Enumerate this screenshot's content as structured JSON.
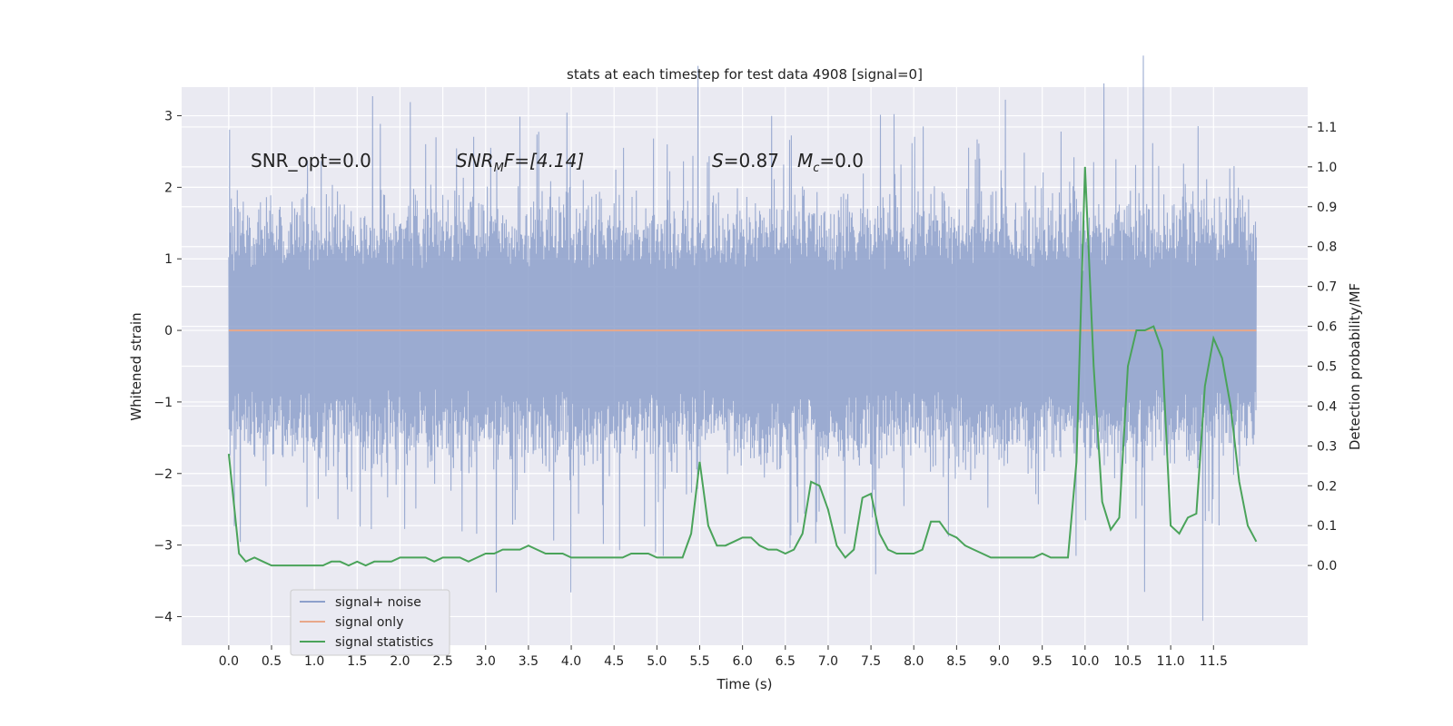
{
  "chart_data": {
    "type": "line",
    "title": "stats at each timestep for test data 4908 [signal=0]",
    "xlabel": "Time (s)",
    "ylabel": "Whitened strain",
    "ylabel_right": "Detection probability/MF",
    "xlim": [
      -0.55,
      12.6
    ],
    "ylim": [
      -4.4,
      3.4
    ],
    "ylim_right": [
      -0.2,
      1.2
    ],
    "x_ticks": [
      "0.0",
      "0.5",
      "1.0",
      "1.5",
      "2.0",
      "2.5",
      "3.0",
      "3.5",
      "4.0",
      "4.5",
      "5.0",
      "5.5",
      "6.0",
      "6.5",
      "7.0",
      "7.5",
      "8.0",
      "8.5",
      "9.0",
      "9.5",
      "10.0",
      "10.5",
      "11.0",
      "11.5"
    ],
    "y_ticks": [
      "3",
      "2",
      "1",
      "0",
      "−1",
      "−2",
      "−3",
      "−4"
    ],
    "y_ticks_right": [
      "1.1",
      "1.0",
      "0.9",
      "0.8",
      "0.7",
      "0.6",
      "0.5",
      "0.4",
      "0.3",
      "0.2",
      "0.1",
      "0.0"
    ],
    "grid": true,
    "legend_position": "lower-left",
    "annotations": {
      "snr_opt": "SNR_opt=0.0",
      "snr_mf_base": "SNR",
      "snr_mf_sub": "M",
      "snr_mf_rest": "F=[4.14]",
      "s_label": "S",
      "s_value": "=0.87",
      "mc_base": "M",
      "mc_sub": "c",
      "mc_value": "=0.0"
    },
    "series": [
      {
        "name": "signal+ noise",
        "color": "#8da0cb",
        "axis": "left",
        "x_range": [
          0.0,
          12.0
        ],
        "typical_band": [
          -1.6,
          1.6
        ],
        "extremes": [
          -4.1,
          3.1
        ],
        "description_values": "dense noise"
      },
      {
        "name": "signal only",
        "color": "#e8a88a",
        "axis": "left",
        "x": [
          0.0,
          12.0
        ],
        "values": [
          0.0,
          0.0
        ]
      },
      {
        "name": "signal statistics",
        "color": "#4aa35a",
        "axis": "right",
        "x": [
          0.0,
          0.12,
          0.2,
          0.3,
          0.4,
          0.5,
          0.6,
          0.7,
          0.8,
          0.9,
          1.0,
          1.1,
          1.2,
          1.3,
          1.4,
          1.5,
          1.6,
          1.7,
          1.8,
          1.9,
          2.0,
          2.1,
          2.2,
          2.3,
          2.4,
          2.5,
          2.6,
          2.7,
          2.8,
          2.9,
          3.0,
          3.1,
          3.2,
          3.3,
          3.4,
          3.5,
          3.6,
          3.7,
          3.8,
          3.9,
          4.0,
          4.1,
          4.2,
          4.3,
          4.4,
          4.5,
          4.6,
          4.7,
          4.8,
          4.9,
          5.0,
          5.1,
          5.2,
          5.3,
          5.4,
          5.5,
          5.6,
          5.7,
          5.8,
          5.9,
          6.0,
          6.1,
          6.2,
          6.3,
          6.4,
          6.5,
          6.6,
          6.7,
          6.8,
          6.9,
          7.0,
          7.1,
          7.2,
          7.3,
          7.4,
          7.5,
          7.6,
          7.7,
          7.8,
          7.9,
          8.0,
          8.1,
          8.2,
          8.3,
          8.4,
          8.5,
          8.6,
          8.7,
          8.8,
          8.9,
          9.0,
          9.1,
          9.2,
          9.3,
          9.4,
          9.5,
          9.6,
          9.7,
          9.8,
          9.9,
          10.0,
          10.1,
          10.2,
          10.3,
          10.4,
          10.5,
          10.6,
          10.7,
          10.8,
          10.9,
          11.0,
          11.1,
          11.2,
          11.3,
          11.4,
          11.5,
          11.6,
          11.7,
          11.8,
          11.9,
          12.0
        ],
        "values": [
          0.28,
          0.03,
          0.01,
          0.02,
          0.01,
          0.0,
          0.0,
          0.0,
          0.0,
          0.0,
          0.0,
          0.0,
          0.01,
          0.01,
          0.0,
          0.01,
          0.0,
          0.01,
          0.01,
          0.01,
          0.02,
          0.02,
          0.02,
          0.02,
          0.01,
          0.02,
          0.02,
          0.02,
          0.01,
          0.02,
          0.03,
          0.03,
          0.04,
          0.04,
          0.04,
          0.05,
          0.04,
          0.03,
          0.03,
          0.03,
          0.02,
          0.02,
          0.02,
          0.02,
          0.02,
          0.02,
          0.02,
          0.03,
          0.03,
          0.03,
          0.02,
          0.02,
          0.02,
          0.02,
          0.08,
          0.26,
          0.1,
          0.05,
          0.05,
          0.06,
          0.07,
          0.07,
          0.05,
          0.04,
          0.04,
          0.03,
          0.04,
          0.08,
          0.21,
          0.2,
          0.14,
          0.05,
          0.02,
          0.04,
          0.17,
          0.18,
          0.08,
          0.04,
          0.03,
          0.03,
          0.03,
          0.04,
          0.11,
          0.11,
          0.08,
          0.07,
          0.05,
          0.04,
          0.03,
          0.02,
          0.02,
          0.02,
          0.02,
          0.02,
          0.02,
          0.03,
          0.02,
          0.02,
          0.02,
          0.26,
          1.0,
          0.5,
          0.16,
          0.09,
          0.12,
          0.5,
          0.59,
          0.59,
          0.6,
          0.54,
          0.1,
          0.08,
          0.12,
          0.13,
          0.45,
          0.57,
          0.52,
          0.4,
          0.21,
          0.1,
          0.06
        ]
      }
    ]
  }
}
